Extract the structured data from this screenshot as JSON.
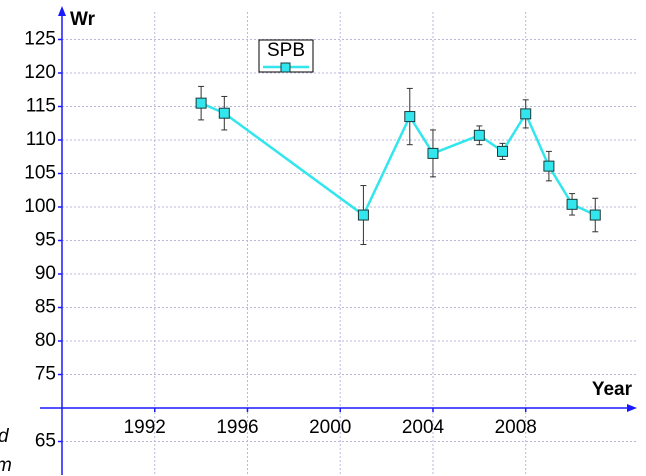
{
  "chart_data": {
    "type": "line",
    "y_label": "Wr",
    "x_label": "Year",
    "annotations": [
      "d",
      "m"
    ],
    "x": [
      1994,
      1995,
      2001,
      2003,
      2004,
      2006,
      2007,
      2008,
      2009,
      2010,
      2011
    ],
    "series": [
      {
        "name": "SPB",
        "color": "#33e6ee",
        "values": [
          115.5,
          114,
          98.8,
          113.5,
          108,
          110.7,
          108.3,
          113.9,
          106.1,
          100.4,
          98.8
        ],
        "errors": [
          2.5,
          2.5,
          4.4,
          4.2,
          3.5,
          1.4,
          1.2,
          2.1,
          2.2,
          1.6,
          2.5
        ]
      }
    ],
    "xlim": [
      1988,
      2012.8
    ],
    "ylim": [
      60,
      130
    ],
    "xticks": [
      1992,
      1996,
      2000,
      2004,
      2008
    ],
    "yticks": [
      65,
      75,
      80,
      85,
      90,
      95,
      100,
      105,
      110,
      115,
      120,
      125
    ],
    "x_axis_crosses": 70,
    "grid": true,
    "legend": "top-left"
  }
}
